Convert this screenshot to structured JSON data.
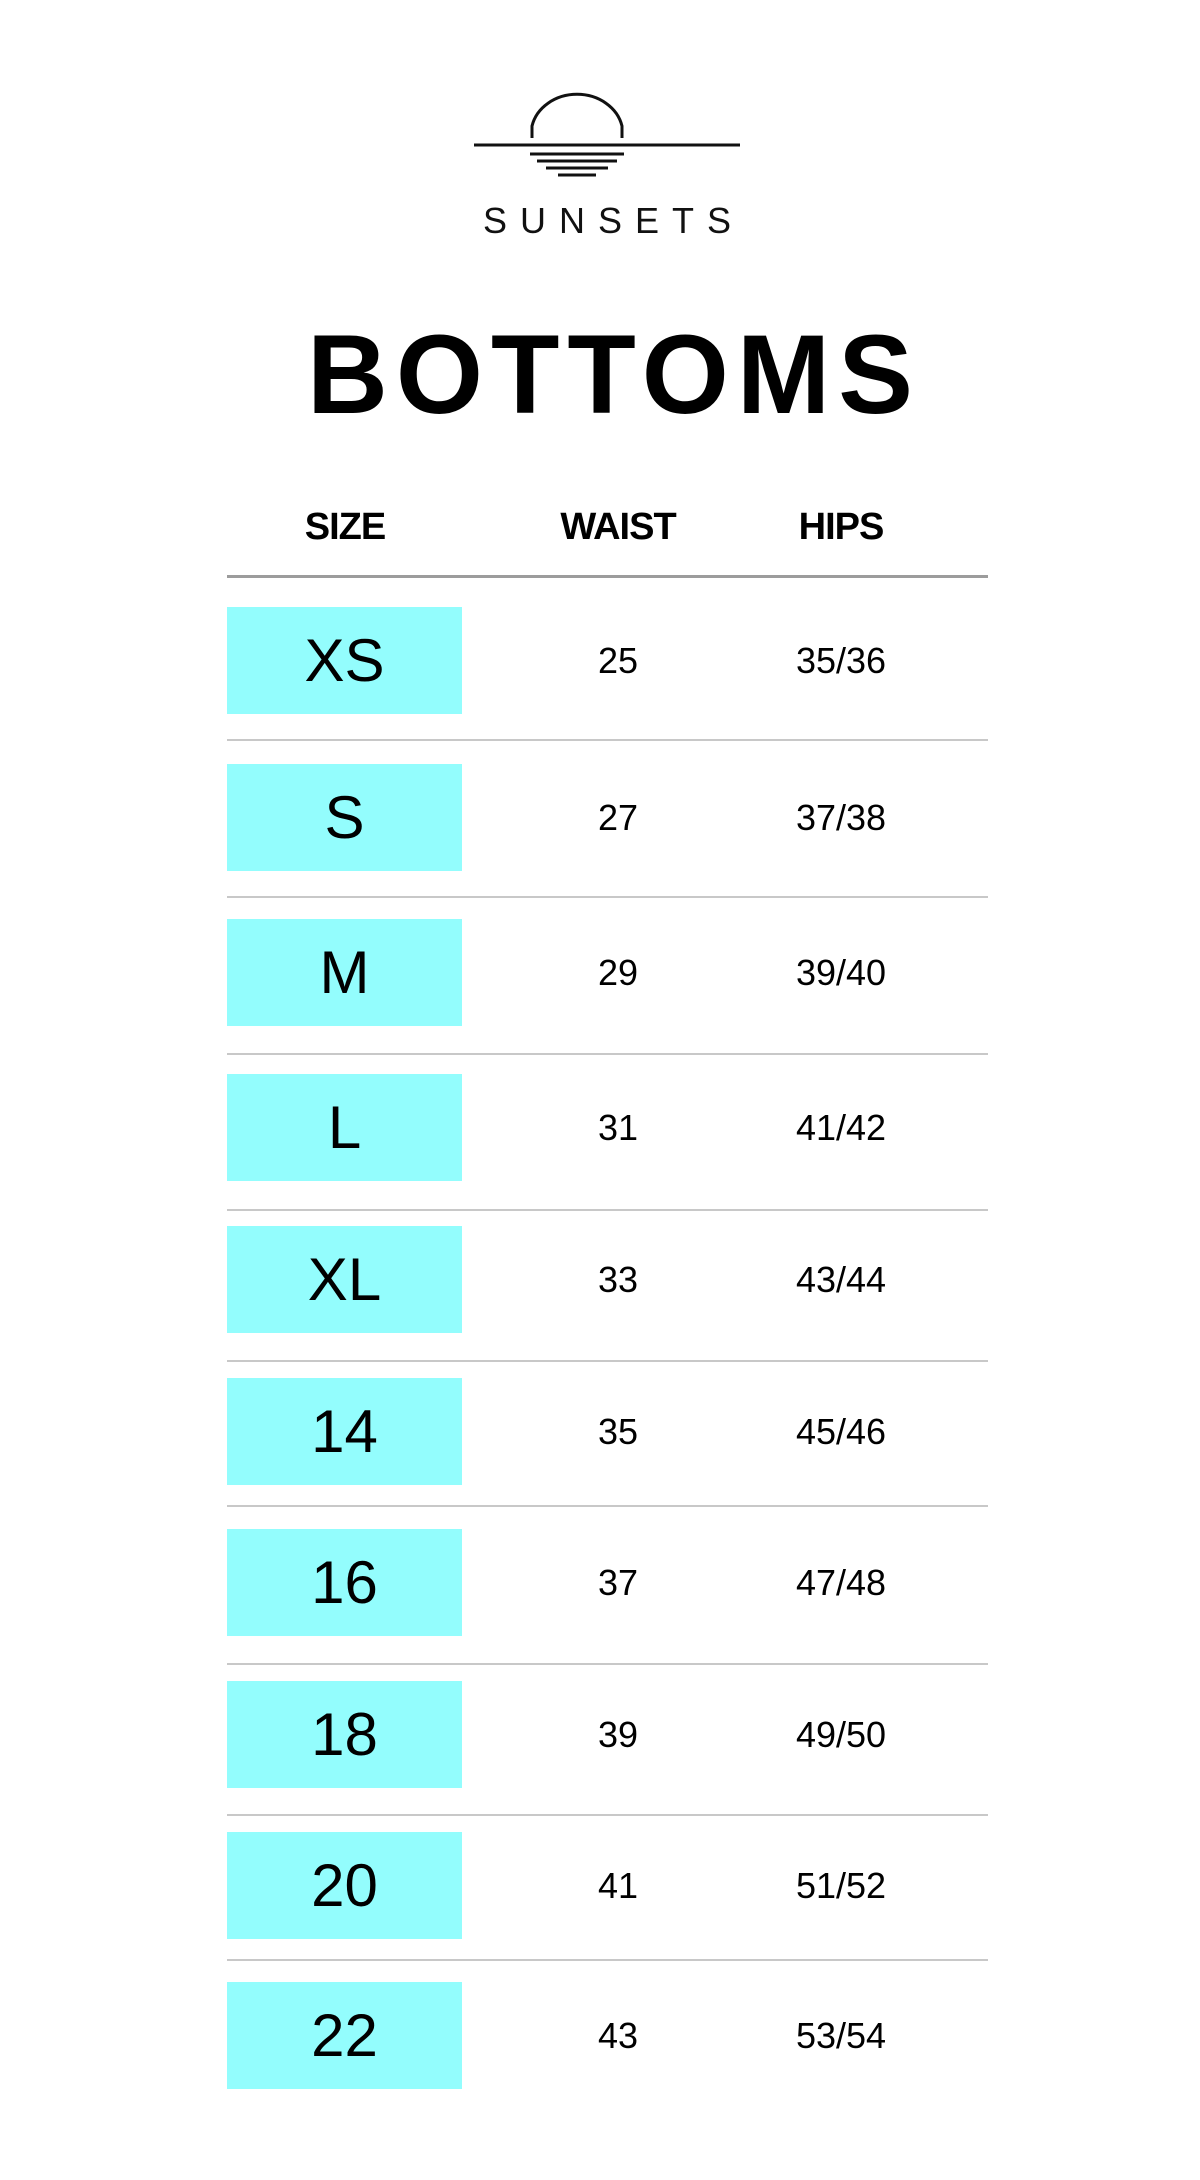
{
  "brand": {
    "name": "SUNSETS",
    "logo_icon": "sun-over-horizon-icon"
  },
  "title": "BOTTOMS",
  "colors": {
    "size_highlight": "#93fdfd",
    "header_rule": "#9c9c9c",
    "row_rule": "#c8c8c8"
  },
  "table": {
    "headers": {
      "size": "SIZE",
      "waist": "WAIST",
      "hips": "HIPS"
    },
    "rows": [
      {
        "size": "XS",
        "waist": "25",
        "hips": "35/36"
      },
      {
        "size": "S",
        "waist": "27",
        "hips": "37/38"
      },
      {
        "size": "M",
        "waist": "29",
        "hips": "39/40"
      },
      {
        "size": "L",
        "waist": "31",
        "hips": "41/42"
      },
      {
        "size": "XL",
        "waist": "33",
        "hips": "43/44"
      },
      {
        "size": "14",
        "waist": "35",
        "hips": "45/46"
      },
      {
        "size": "16",
        "waist": "37",
        "hips": "47/48"
      },
      {
        "size": "18",
        "waist": "39",
        "hips": "49/50"
      },
      {
        "size": "20",
        "waist": "41",
        "hips": "51/52"
      },
      {
        "size": "22",
        "waist": "43",
        "hips": "53/54"
      }
    ]
  }
}
